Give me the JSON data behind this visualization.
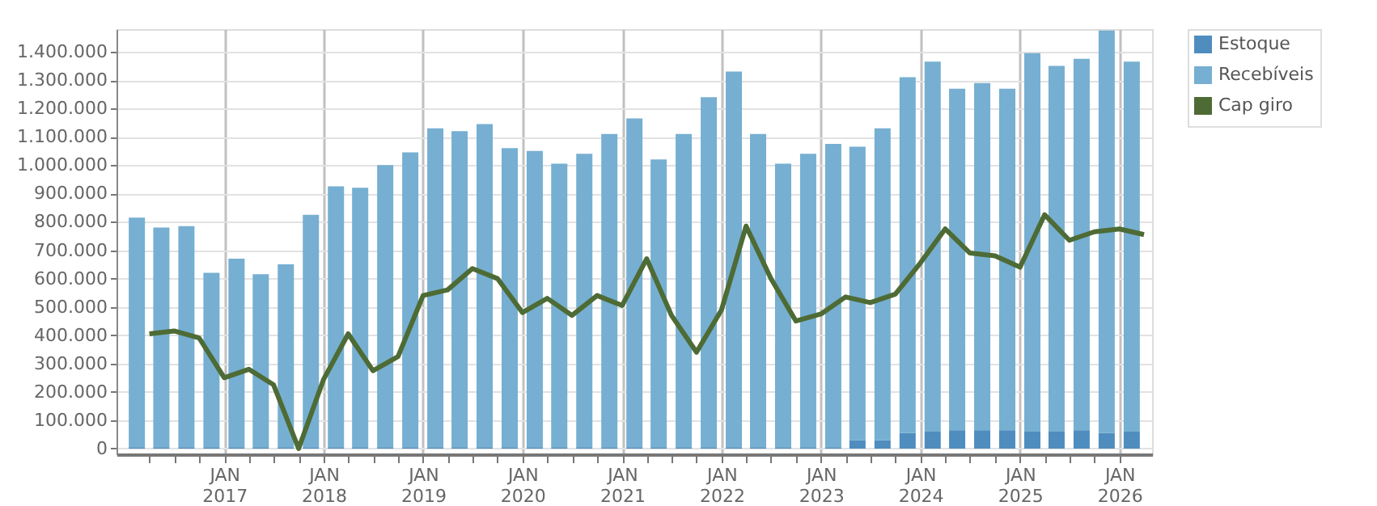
{
  "chart_data": {
    "type": "bar",
    "stacked": true,
    "legend": "top right",
    "grid": true,
    "xlim": [
      "2016-01-01",
      "2026-04-01"
    ],
    "xticks": [
      {
        "value": "2016-04-01",
        "label": null
      },
      {
        "value": "2016-07-01",
        "label": null
      },
      {
        "value": "2016-10-01",
        "label": null
      },
      {
        "value": "2017-01-01",
        "label": "JAN\n2017"
      },
      {
        "value": "2017-04-01",
        "label": null
      },
      {
        "value": "2017-07-01",
        "label": null
      },
      {
        "value": "2017-10-01",
        "label": null
      },
      {
        "value": "2018-01-01",
        "label": "JAN\n2018"
      },
      {
        "value": "2018-04-01",
        "label": null
      },
      {
        "value": "2018-07-01",
        "label": null
      },
      {
        "value": "2018-10-01",
        "label": null
      },
      {
        "value": "2019-01-01",
        "label": "JAN\n2019"
      },
      {
        "value": "2019-04-01",
        "label": null
      },
      {
        "value": "2019-07-01",
        "label": null
      },
      {
        "value": "2019-10-01",
        "label": null
      },
      {
        "value": "2020-01-01",
        "label": "JAN\n2020"
      },
      {
        "value": "2020-04-01",
        "label": null
      },
      {
        "value": "2020-07-01",
        "label": null
      },
      {
        "value": "2020-10-01",
        "label": null
      },
      {
        "value": "2021-01-01",
        "label": "JAN\n2021"
      },
      {
        "value": "2021-04-01",
        "label": null
      },
      {
        "value": "2021-07-01",
        "label": null
      },
      {
        "value": "2021-10-01",
        "label": null
      },
      {
        "value": "2022-01-01",
        "label": "JAN\n2022"
      },
      {
        "value": "2022-04-01",
        "label": null
      },
      {
        "value": "2022-07-01",
        "label": null
      },
      {
        "value": "2022-10-01",
        "label": null
      },
      {
        "value": "2023-01-01",
        "label": "JAN\n2023"
      },
      {
        "value": "2023-04-01",
        "label": null
      },
      {
        "value": "2023-07-01",
        "label": null
      },
      {
        "value": "2023-10-01",
        "label": null
      },
      {
        "value": "2024-01-01",
        "label": "JAN\n2024"
      },
      {
        "value": "2024-04-01",
        "label": null
      },
      {
        "value": "2024-07-01",
        "label": null
      },
      {
        "value": "2024-10-01",
        "label": null
      },
      {
        "value": "2025-01-01",
        "label": "JAN\n2025"
      },
      {
        "value": "2025-04-01",
        "label": null
      },
      {
        "value": "2025-07-01",
        "label": null
      },
      {
        "value": "2025-10-01",
        "label": null
      },
      {
        "value": "2026-01-01",
        "label": "JAN\n2026"
      }
    ],
    "ylim": [
      -20000,
      1480000
    ],
    "yticks": [
      {
        "value": 0,
        "label": "0"
      },
      {
        "value": 100000,
        "label": "100.000"
      },
      {
        "value": 200000,
        "label": "200.000"
      },
      {
        "value": 300000,
        "label": "300.000"
      },
      {
        "value": 400000,
        "label": "400.000"
      },
      {
        "value": 500000,
        "label": "500.000"
      },
      {
        "value": 600000,
        "label": "600.000"
      },
      {
        "value": 700000,
        "label": "700.000"
      },
      {
        "value": 800000,
        "label": "800.000"
      },
      {
        "value": 900000,
        "label": "900.000"
      },
      {
        "value": 1000000,
        "label": "1.000.000"
      },
      {
        "value": 1100000,
        "label": "1.100.000"
      },
      {
        "value": 1200000,
        "label": "1.200.000"
      },
      {
        "value": 1300000,
        "label": "1.300.000"
      },
      {
        "value": 1400000,
        "label": "1.400.000"
      }
    ],
    "series": [
      {
        "name": "Estoque",
        "color": "#4f8dbf",
        "x": [
          "2016-02-15",
          "2016-05-15",
          "2016-08-15",
          "2016-11-15",
          "2017-02-15",
          "2017-05-15",
          "2017-08-15",
          "2017-11-15",
          "2018-02-15",
          "2018-05-15",
          "2018-08-15",
          "2018-11-15",
          "2019-02-15",
          "2019-05-15",
          "2019-08-15",
          "2019-11-15",
          "2020-02-15",
          "2020-05-15",
          "2020-08-15",
          "2020-11-15",
          "2021-02-15",
          "2021-05-15",
          "2021-08-15",
          "2021-11-15",
          "2022-02-15",
          "2022-05-15",
          "2022-08-15",
          "2022-11-15",
          "2023-02-15",
          "2023-05-15",
          "2023-08-15",
          "2023-11-15",
          "2024-02-15",
          "2024-05-15",
          "2024-08-15",
          "2024-11-15",
          "2025-02-15",
          "2025-05-15",
          "2025-08-15",
          "2025-11-15",
          "2026-02-15"
        ],
        "values": [
          5000,
          5000,
          5000,
          5000,
          5000,
          5000,
          5000,
          5000,
          5000,
          5000,
          5000,
          5000,
          5000,
          5000,
          5000,
          5000,
          5000,
          5000,
          5000,
          5000,
          5000,
          5000,
          5000,
          5000,
          5000,
          5000,
          5000,
          5000,
          5000,
          30000,
          30000,
          55000,
          60000,
          65000,
          65000,
          65000,
          60000,
          60000,
          65000,
          55000,
          60000
        ]
      },
      {
        "name": "Recebíveis",
        "color": "#76afd1",
        "x": [
          "2016-02-15",
          "2016-05-15",
          "2016-08-15",
          "2016-11-15",
          "2017-02-15",
          "2017-05-15",
          "2017-08-15",
          "2017-11-15",
          "2018-02-15",
          "2018-05-15",
          "2018-08-15",
          "2018-11-15",
          "2019-02-15",
          "2019-05-15",
          "2019-08-15",
          "2019-11-15",
          "2020-02-15",
          "2020-05-15",
          "2020-08-15",
          "2020-11-15",
          "2021-02-15",
          "2021-05-15",
          "2021-08-15",
          "2021-11-15",
          "2022-02-15",
          "2022-05-15",
          "2022-08-15",
          "2022-11-15",
          "2023-02-15",
          "2023-05-15",
          "2023-08-15",
          "2023-11-15",
          "2024-02-15",
          "2024-05-15",
          "2024-08-15",
          "2024-11-15",
          "2025-02-15",
          "2025-05-15",
          "2025-08-15",
          "2025-11-15",
          "2026-02-15"
        ],
        "values": [
          810000,
          775000,
          780000,
          615000,
          665000,
          610000,
          645000,
          820000,
          920000,
          915000,
          995000,
          1040000,
          1125000,
          1115000,
          1140000,
          1055000,
          1045000,
          1000000,
          1035000,
          1105000,
          1160000,
          1015000,
          1105000,
          1235000,
          1325000,
          1105000,
          1000000,
          1035000,
          1070000,
          1035000,
          1100000,
          1255000,
          1305000,
          1205000,
          1225000,
          1205000,
          1335000,
          1290000,
          1310000,
          1420000,
          1305000
        ]
      },
      {
        "name": "Cap giro",
        "type": "line",
        "color": "#4e6b35",
        "x": [
          "2016-04-01",
          "2016-07-01",
          "2016-10-01",
          "2017-01-01",
          "2017-04-01",
          "2017-07-01",
          "2017-10-01",
          "2018-01-01",
          "2018-04-01",
          "2018-07-01",
          "2018-10-01",
          "2019-01-01",
          "2019-04-01",
          "2019-07-01",
          "2019-10-01",
          "2020-01-01",
          "2020-04-01",
          "2020-07-01",
          "2020-10-01",
          "2021-01-01",
          "2021-04-01",
          "2021-07-01",
          "2021-10-01",
          "2022-01-01",
          "2022-04-01",
          "2022-07-01",
          "2022-10-01",
          "2023-01-01",
          "2023-04-01",
          "2023-07-01",
          "2023-10-01",
          "2024-01-01",
          "2024-04-01",
          "2024-07-01",
          "2024-10-01",
          "2025-01-01",
          "2025-04-01",
          "2025-07-01",
          "2025-10-01",
          "2026-01-01",
          "2026-04-01"
        ],
        "values": [
          405000,
          415000,
          390000,
          250000,
          280000,
          225000,
          0,
          245000,
          405000,
          275000,
          325000,
          540000,
          560000,
          635000,
          600000,
          480000,
          530000,
          470000,
          540000,
          505000,
          670000,
          470000,
          340000,
          490000,
          785000,
          600000,
          450000,
          475000,
          535000,
          515000,
          545000,
          655000,
          775000,
          690000,
          680000,
          640000,
          825000,
          735000,
          765000,
          775000,
          755000
        ]
      }
    ]
  }
}
